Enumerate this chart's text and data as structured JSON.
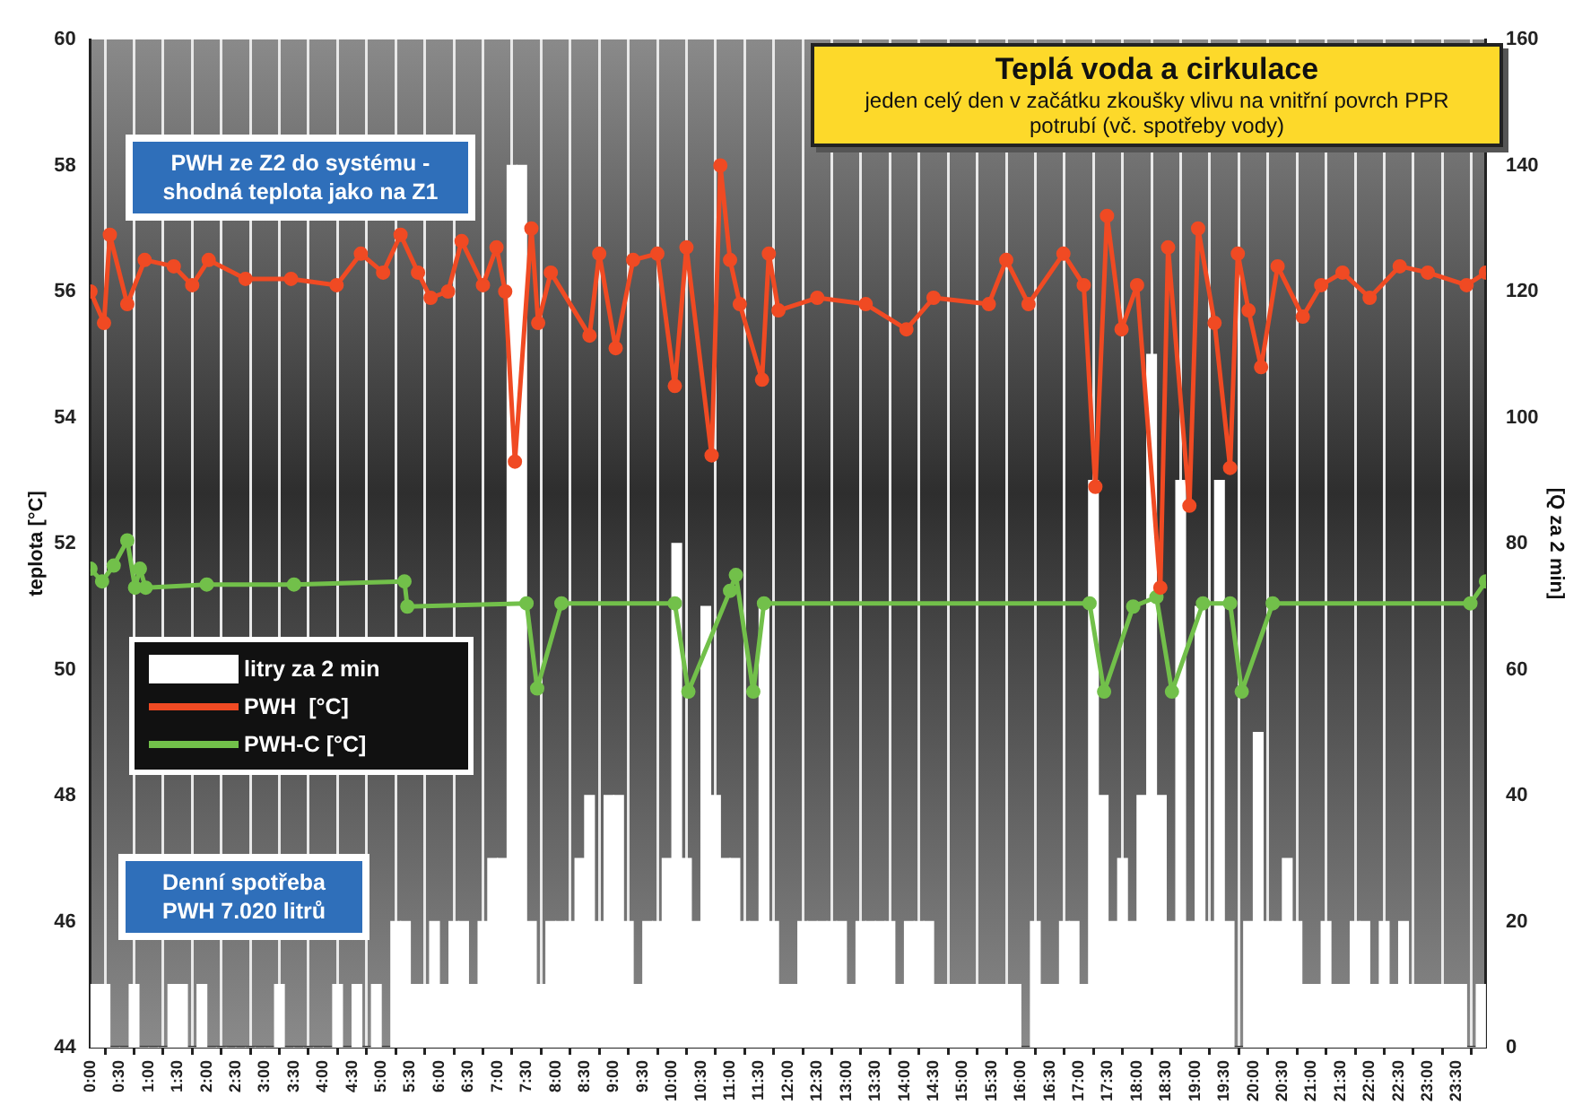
{
  "chart_data": {
    "type": "bar",
    "title": "Teplá voda a cirkulace",
    "subtitle": "jeden celý den v začátku zkoušky vlivu na vnitřní povrch PPR potrubí (vč. spotřeby vody)",
    "ylabel": "teplota [°C]",
    "y2label": "[Q za 2 min]",
    "annotations": [
      "PWH ze Z2 do systému - shodná teplota jako na Z1",
      "Denní spotřeba PWH   7.020 litrů"
    ],
    "xlim": [
      0,
      24
    ],
    "xticks": [
      {
        "value": 0,
        "label": "0:00"
      },
      {
        "value": 0.5,
        "label": "0:30"
      },
      {
        "value": 1,
        "label": "1:00"
      },
      {
        "value": 1.5,
        "label": "1:30"
      },
      {
        "value": 2,
        "label": "2:00"
      },
      {
        "value": 2.5,
        "label": "2:30"
      },
      {
        "value": 3,
        "label": "3:00"
      },
      {
        "value": 3.5,
        "label": "3:30"
      },
      {
        "value": 4,
        "label": "4:00"
      },
      {
        "value": 4.5,
        "label": "4:30"
      },
      {
        "value": 5,
        "label": "5:00"
      },
      {
        "value": 5.5,
        "label": "5:30"
      },
      {
        "value": 6,
        "label": "6:00"
      },
      {
        "value": 6.5,
        "label": "6:30"
      },
      {
        "value": 7,
        "label": "7:00"
      },
      {
        "value": 7.5,
        "label": "7:30"
      },
      {
        "value": 8,
        "label": "8:00"
      },
      {
        "value": 8.5,
        "label": "8:30"
      },
      {
        "value": 9,
        "label": "9:00"
      },
      {
        "value": 9.5,
        "label": "9:30"
      },
      {
        "value": 10,
        "label": "10:00"
      },
      {
        "value": 10.5,
        "label": "10:30"
      },
      {
        "value": 11,
        "label": "11:00"
      },
      {
        "value": 11.5,
        "label": "11:30"
      },
      {
        "value": 12,
        "label": "12:00"
      },
      {
        "value": 12.5,
        "label": "12:30"
      },
      {
        "value": 13,
        "label": "13:00"
      },
      {
        "value": 13.5,
        "label": "13:30"
      },
      {
        "value": 14,
        "label": "14:00"
      },
      {
        "value": 14.5,
        "label": "14:30"
      },
      {
        "value": 15,
        "label": "15:00"
      },
      {
        "value": 15.5,
        "label": "15:30"
      },
      {
        "value": 16,
        "label": "16:00"
      },
      {
        "value": 16.5,
        "label": "16:30"
      },
      {
        "value": 17,
        "label": "17:00"
      },
      {
        "value": 17.5,
        "label": "17:30"
      },
      {
        "value": 18,
        "label": "18:00"
      },
      {
        "value": 18.5,
        "label": "18:30"
      },
      {
        "value": 19,
        "label": "19:00"
      },
      {
        "value": 19.5,
        "label": "19:30"
      },
      {
        "value": 20,
        "label": "20:00"
      },
      {
        "value": 20.5,
        "label": "20:30"
      },
      {
        "value": 21,
        "label": "21:00"
      },
      {
        "value": 21.5,
        "label": "21:30"
      },
      {
        "value": 22,
        "label": "22:00"
      },
      {
        "value": 22.5,
        "label": "22:30"
      },
      {
        "value": 23,
        "label": "23:00"
      },
      {
        "value": 23.5,
        "label": "23:30"
      }
    ],
    "ylim": [
      44,
      60
    ],
    "yticks": [
      44,
      46,
      48,
      50,
      52,
      54,
      56,
      58,
      60
    ],
    "y2lim": [
      0,
      160
    ],
    "y2ticks": [
      0,
      20,
      40,
      60,
      80,
      100,
      120,
      140,
      160
    ],
    "grid": "x",
    "legend": "left",
    "marker": "circle",
    "line_style": "solid",
    "series": [
      {
        "name": "litry za 2 min",
        "axis": "y2",
        "color": "#ffffff",
        "x": [
          0.083,
          0.25,
          0.417,
          0.583,
          0.75,
          0.917,
          1.083,
          1.25,
          1.417,
          1.583,
          1.75,
          1.917,
          2.083,
          2.25,
          2.417,
          2.583,
          2.75,
          2.917,
          3.083,
          3.25,
          3.417,
          3.583,
          3.75,
          3.917,
          4.083,
          4.25,
          4.417,
          4.583,
          4.75,
          4.917,
          5.083,
          5.25,
          5.417,
          5.583,
          5.75,
          5.917,
          6.083,
          6.25,
          6.417,
          6.583,
          6.75,
          6.917,
          7.083,
          7.25,
          7.417,
          7.583,
          7.75,
          7.917,
          8.083,
          8.25,
          8.417,
          8.583,
          8.75,
          8.917,
          9.083,
          9.25,
          9.417,
          9.583,
          9.75,
          9.917,
          10.083,
          10.25,
          10.417,
          10.583,
          10.75,
          10.917,
          11.083,
          11.25,
          11.417,
          11.583,
          11.75,
          11.917,
          12.083,
          12.25,
          12.417,
          12.583,
          12.75,
          12.917,
          13.083,
          13.25,
          13.417,
          13.583,
          13.75,
          13.917,
          14.083,
          14.25,
          14.417,
          14.583,
          14.75,
          14.917,
          15.083,
          15.25,
          15.417,
          15.583,
          15.75,
          15.917,
          16.083,
          16.25,
          16.417,
          16.583,
          16.75,
          16.917,
          17.083,
          17.25,
          17.417,
          17.583,
          17.75,
          17.917,
          18.083,
          18.25,
          18.417,
          18.583,
          18.75,
          18.917,
          19.083,
          19.25,
          19.417,
          19.583,
          19.75,
          19.917,
          20.083,
          20.25,
          20.417,
          20.583,
          20.75,
          20.917,
          21.083,
          21.25,
          21.417,
          21.583,
          21.75,
          21.917,
          22.083,
          22.25,
          22.417,
          22.583,
          22.75,
          22.917,
          23.083,
          23.25,
          23.417,
          23.583,
          23.75,
          23.917
        ],
        "values": [
          10,
          10,
          0,
          0,
          10,
          0,
          0,
          0,
          10,
          10,
          0,
          10,
          0,
          0,
          0,
          0,
          0,
          0,
          0,
          10,
          0,
          0,
          0,
          0,
          0,
          10,
          0,
          10,
          0,
          10,
          0,
          20,
          20,
          10,
          10,
          20,
          10,
          20,
          20,
          10,
          20,
          30,
          30,
          140,
          140,
          20,
          10,
          20,
          20,
          20,
          30,
          40,
          20,
          40,
          40,
          20,
          10,
          20,
          20,
          30,
          80,
          30,
          20,
          70,
          40,
          30,
          30,
          20,
          20,
          70,
          20,
          10,
          10,
          20,
          20,
          20,
          20,
          20,
          10,
          20,
          20,
          20,
          20,
          10,
          20,
          20,
          20,
          10,
          10,
          10,
          10,
          10,
          10,
          10,
          10,
          10,
          0,
          20,
          10,
          10,
          20,
          20,
          10,
          90,
          40,
          20,
          30,
          20,
          40,
          110,
          40,
          20,
          90,
          20,
          70,
          20,
          90,
          20,
          0,
          20,
          50,
          20,
          20,
          30,
          20,
          10,
          10,
          20,
          10,
          10,
          20,
          20,
          10,
          20,
          10,
          20,
          10,
          10,
          10,
          10,
          10,
          10,
          0,
          10
        ]
      },
      {
        "name": "PWH  [°C]",
        "type": "line",
        "axis": "y",
        "color": "#f04a23",
        "x": [
          0,
          0.233,
          0.333,
          0.633,
          0.933,
          1.433,
          1.75,
          2.033,
          2.667,
          3.45,
          4.233,
          4.65,
          5.033,
          5.333,
          5.633,
          5.85,
          6.15,
          6.383,
          6.75,
          6.983,
          7.133,
          7.3,
          7.583,
          7.7,
          7.917,
          8.583,
          8.75,
          9.033,
          9.333,
          9.75,
          10.05,
          10.25,
          10.683,
          10.833,
          11,
          11.167,
          11.55,
          11.667,
          11.833,
          12.5,
          13.333,
          14.033,
          14.5,
          15.45,
          15.75,
          16.133,
          16.733,
          17.083,
          17.283,
          17.483,
          17.733,
          18,
          18.4,
          18.533,
          18.9,
          19.05,
          19.333,
          19.6,
          19.733,
          19.917,
          20.133,
          20.417,
          20.85,
          21.167,
          21.533,
          22,
          22.517,
          23,
          23.667,
          24
        ],
        "values": [
          56.0,
          55.5,
          56.9,
          55.8,
          56.5,
          56.4,
          56.1,
          56.5,
          56.2,
          56.2,
          56.1,
          56.6,
          56.3,
          56.9,
          56.3,
          55.9,
          56.0,
          56.8,
          56.1,
          56.7,
          56.0,
          53.3,
          57.0,
          55.5,
          56.3,
          55.3,
          56.6,
          55.1,
          56.5,
          56.6,
          54.5,
          56.7,
          53.4,
          58.0,
          56.5,
          55.8,
          54.6,
          56.6,
          55.7,
          55.9,
          55.8,
          55.4,
          55.9,
          55.8,
          56.5,
          55.8,
          56.6,
          56.1,
          52.9,
          57.2,
          55.4,
          56.1,
          51.3,
          56.7,
          52.6,
          57.0,
          55.5,
          53.2,
          56.6,
          55.7,
          54.8,
          56.4,
          55.6,
          56.1,
          56.3,
          55.9,
          56.4,
          56.3,
          56.1,
          56.3
        ]
      },
      {
        "name": "PWH-C [°C]",
        "type": "line",
        "axis": "y",
        "color": "#72c04a",
        "x": [
          0,
          0.2,
          0.4,
          0.633,
          0.767,
          0.85,
          0.95,
          2,
          3.5,
          5.4,
          5.45,
          7.5,
          7.683,
          8.1,
          10.05,
          10.283,
          11,
          11.1,
          11.4,
          11.583,
          17.183,
          17.433,
          17.933,
          18.333,
          18.6,
          19.133,
          19.6,
          19.8,
          20.333,
          23.733,
          24
        ],
        "values": [
          51.6,
          51.4,
          51.65,
          52.05,
          51.3,
          51.6,
          51.3,
          51.35,
          51.35,
          51.4,
          51.0,
          51.05,
          49.7,
          51.05,
          51.05,
          49.65,
          51.25,
          51.5,
          49.65,
          51.05,
          51.05,
          49.65,
          51.0,
          51.15,
          49.65,
          51.05,
          51.05,
          49.65,
          51.05,
          51.05,
          51.4
        ]
      }
    ]
  }
}
